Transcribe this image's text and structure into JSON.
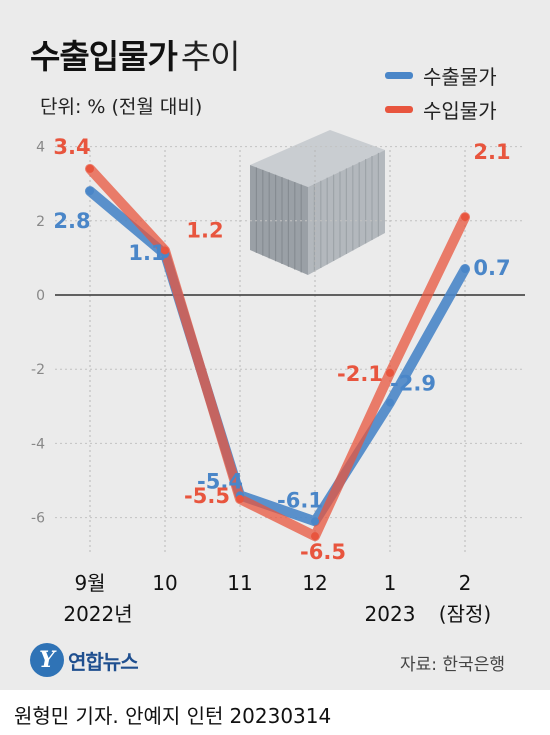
{
  "title": {
    "main": "수출입물가",
    "sub": "추이"
  },
  "unit_label": "단위: % (전월 대비)",
  "legend": [
    {
      "label": "수출물가",
      "color": "#4a86c8"
    },
    {
      "label": "수입물가",
      "color": "#e8553e"
    }
  ],
  "source": "자료: 한국은행",
  "logo": {
    "mark": "Y",
    "text": "연합뉴스"
  },
  "credit": {
    "author": "원형민 기자. 안예지 인턴",
    "date": "20230314"
  },
  "chart_data": {
    "type": "line",
    "categories": [
      "9월",
      "10",
      "11",
      "12",
      "1",
      "2"
    ],
    "category_sublabels": [
      "2022년",
      "",
      "",
      "",
      "2023",
      "(잠정)"
    ],
    "ylim": [
      -6.5,
      4
    ],
    "yticks": [
      "4",
      "2",
      "0",
      "-2",
      "-4",
      "-6"
    ],
    "series": [
      {
        "name": "수출물가",
        "color": "#4a86c8",
        "values": [
          2.8,
          1.1,
          -5.4,
          -6.1,
          -2.9,
          0.7
        ],
        "labels": [
          "2.8",
          "1.1",
          "-5.4",
          "-6.1",
          "-2.9",
          "0.7"
        ]
      },
      {
        "name": "수입물가",
        "color": "#e8553e",
        "values": [
          3.4,
          1.2,
          -5.5,
          -6.5,
          -2.1,
          2.1
        ],
        "labels": [
          "3.4",
          "1.2",
          "-5.5",
          "-6.5",
          "-2.1",
          "2.1"
        ]
      }
    ]
  }
}
